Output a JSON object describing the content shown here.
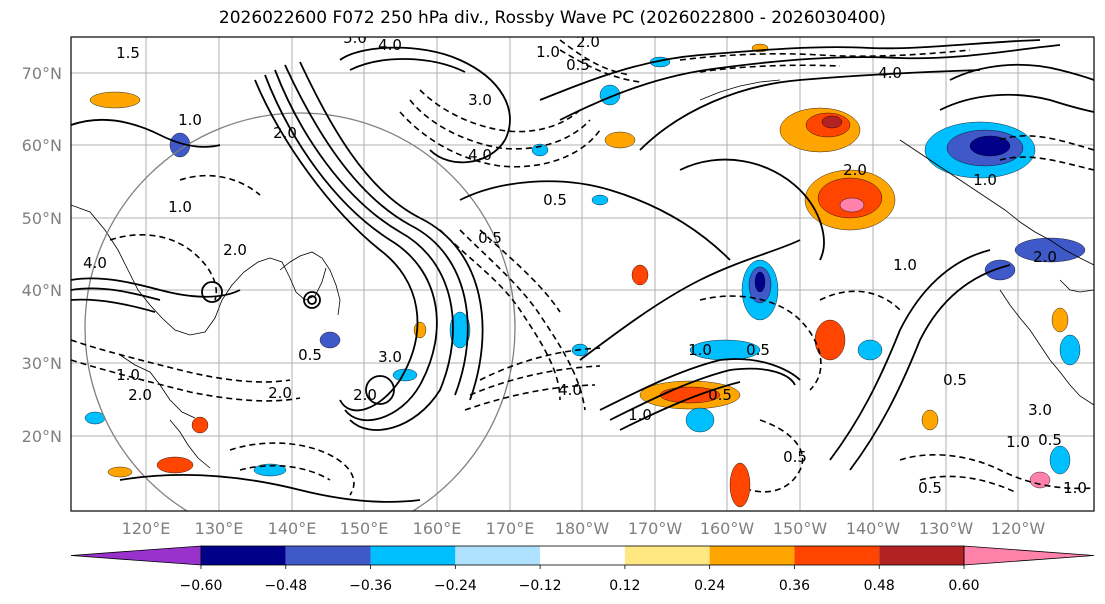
{
  "title": "2026022600 F072 250 hPa div., Rossby Wave PC (2026022800 - 2026030400)",
  "map": {
    "lat_labels": [
      "70°N",
      "60°N",
      "50°N",
      "40°N",
      "30°N",
      "20°N"
    ],
    "lon_labels": [
      "120°E",
      "130°E",
      "140°E",
      "150°E",
      "160°E",
      "170°E",
      "180°W",
      "170°W",
      "160°W",
      "150°W",
      "140°W",
      "130°W",
      "120°W"
    ],
    "contour_labels": [
      "1.5",
      "5.0",
      "4.0",
      "2.0",
      "1.0",
      "0.5",
      "3.0",
      "1.0",
      "2.0",
      "4.0",
      "0.5",
      "1.0",
      "2.0",
      "0.5",
      "4.0",
      "1.0",
      "2.0",
      "0.5",
      "3.0",
      "2.0",
      "2.0",
      "4.0",
      "1.0",
      "0.5",
      "1.0",
      "0.5",
      "0.5",
      "2.0",
      "1.0",
      "0.5",
      "3.0",
      "4.0",
      "1.0",
      "2.0",
      "1.0",
      "0.5",
      "0.5",
      "1.0"
    ],
    "shading_colors": {
      "strong_negative": "#8b2fd0",
      "navy": "#00008b",
      "blue": "#3f5ac8",
      "cyan": "#00bfff",
      "light_cyan": "#b0e2ff",
      "yellow": "#ffe882",
      "orange": "#ffa500",
      "red_orange": "#ff4500",
      "dark_red": "#b22222",
      "pink": "#ff82ab"
    }
  },
  "colorbar": {
    "colors": [
      "#9932cc",
      "#00008b",
      "#3f5ac8",
      "#00bfff",
      "#b0e2ff",
      "#ffffff",
      "#ffe882",
      "#ffa500",
      "#ff4500",
      "#b22222",
      "#ff82ab"
    ],
    "tick_labels": [
      "−0.60",
      "−0.48",
      "−0.36",
      "−0.24",
      "−0.12",
      "0.12",
      "0.24",
      "0.36",
      "0.48",
      "0.60"
    ]
  }
}
